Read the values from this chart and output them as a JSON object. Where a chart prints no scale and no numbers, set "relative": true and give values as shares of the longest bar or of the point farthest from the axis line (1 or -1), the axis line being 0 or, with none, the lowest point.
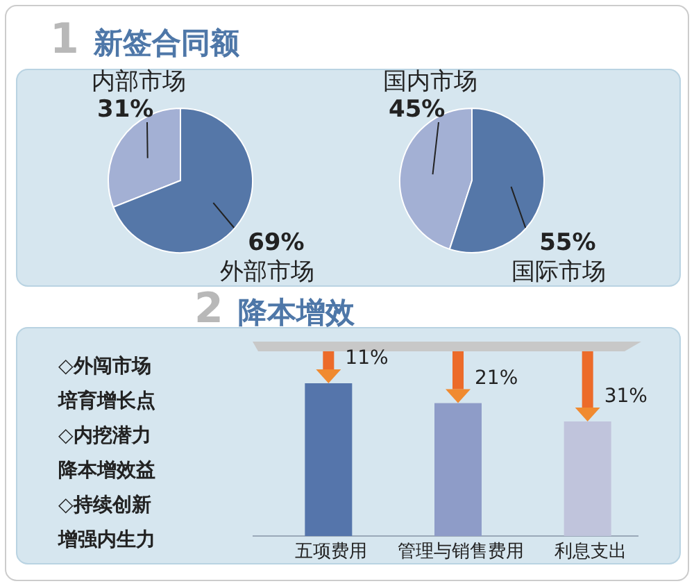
{
  "chart_data": [
    {
      "type": "pie",
      "title": "1 新签合同额",
      "categories": [
        "内部市场",
        "外部市场"
      ],
      "values": [
        31,
        69
      ],
      "colors": [
        "#a3b0d4",
        "#5577a8"
      ],
      "value_labels": [
        "31%",
        "69%"
      ]
    },
    {
      "type": "pie",
      "categories": [
        "国内市场",
        "国际市场"
      ],
      "values": [
        45,
        55
      ],
      "colors": [
        "#a3b0d4",
        "#5577a8"
      ],
      "value_labels": [
        "45%",
        "55%"
      ]
    },
    {
      "type": "bar",
      "title": "2 降本增效",
      "relative": true,
      "categories": [
        "五项费用",
        "管理与销售费用",
        "利息支出"
      ],
      "values": [
        1,
        0.87,
        0.75
      ],
      "colors": [
        "#5575ab",
        "#8e9cc8",
        "#c0c4dc"
      ],
      "annotations": [
        "◇外闯市场",
        "培育增长点",
        "◇内挖潜力",
        "降本增效益",
        "◇持续创新",
        "增强内生力",
        {
          "text": "11%",
          "x": "五项费用",
          "y": 1
        },
        {
          "text": "21%",
          "x": "管理与销售费用",
          "y": 0.87
        },
        {
          "text": "31%",
          "x": "利息支出",
          "y": 0.75
        }
      ]
    }
  ]
}
